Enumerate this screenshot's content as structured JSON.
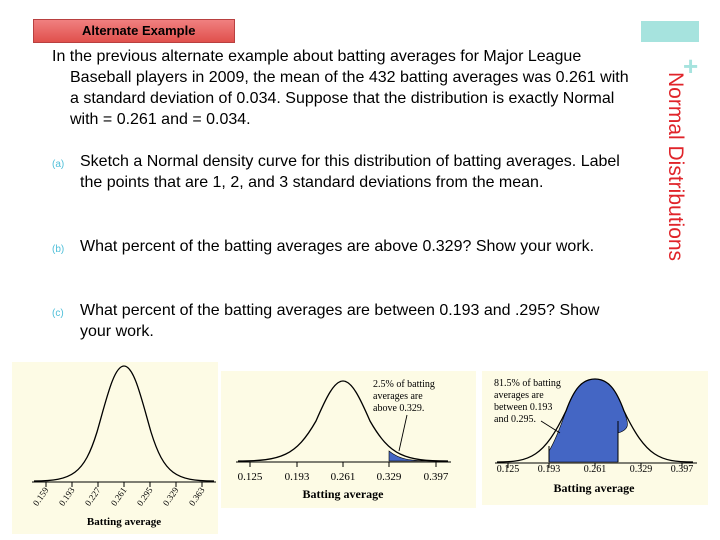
{
  "header": {
    "label": "Alternate Example"
  },
  "side_title": "Normal Distributions",
  "intro": "In the previous alternate example about batting averages for Major League Baseball players in 2009, the mean of the 432 batting averages was 0.261 with a standard deviation of 0.034.  Suppose that the distribution is exactly Normal with  = 0.261 and  = 0.034.",
  "items": [
    {
      "mark": "(a)",
      "text": "Sketch a Normal density curve for this distribution of batting averages. Label the points that are 1, 2, and 3 standard deviations from the mean."
    },
    {
      "mark": "(b)",
      "text": "What percent of the batting averages are above 0.329? Show your work."
    },
    {
      "mark": "(c)",
      "text": "What percent of the batting averages are between 0.193 and .295? Show your work."
    }
  ],
  "colors": {
    "accent_red": "#e0242a",
    "accent_teal": "#a6e3de",
    "fill_blue": "#4466c4",
    "figure_bg": "#fdfbe5"
  },
  "figures": [
    {
      "ticks": [
        "0.159",
        "0.193",
        "0.227",
        "0.261",
        "0.295",
        "0.329",
        "0.363"
      ],
      "xlabel": "Batting average"
    },
    {
      "ticks": [
        "0.125",
        "0.193",
        "0.261",
        "0.329",
        "0.397"
      ],
      "xlabel": "Batting average",
      "note": [
        "2.5% of batting",
        "averages are",
        "above 0.329."
      ]
    },
    {
      "ticks": [
        "0.125",
        "0.193",
        "0.261",
        "0.329",
        "0.397"
      ],
      "xlabel": "Batting average",
      "note": [
        "81.5% of batting",
        "averages are",
        "between 0.193",
        "and 0.295."
      ]
    }
  ]
}
